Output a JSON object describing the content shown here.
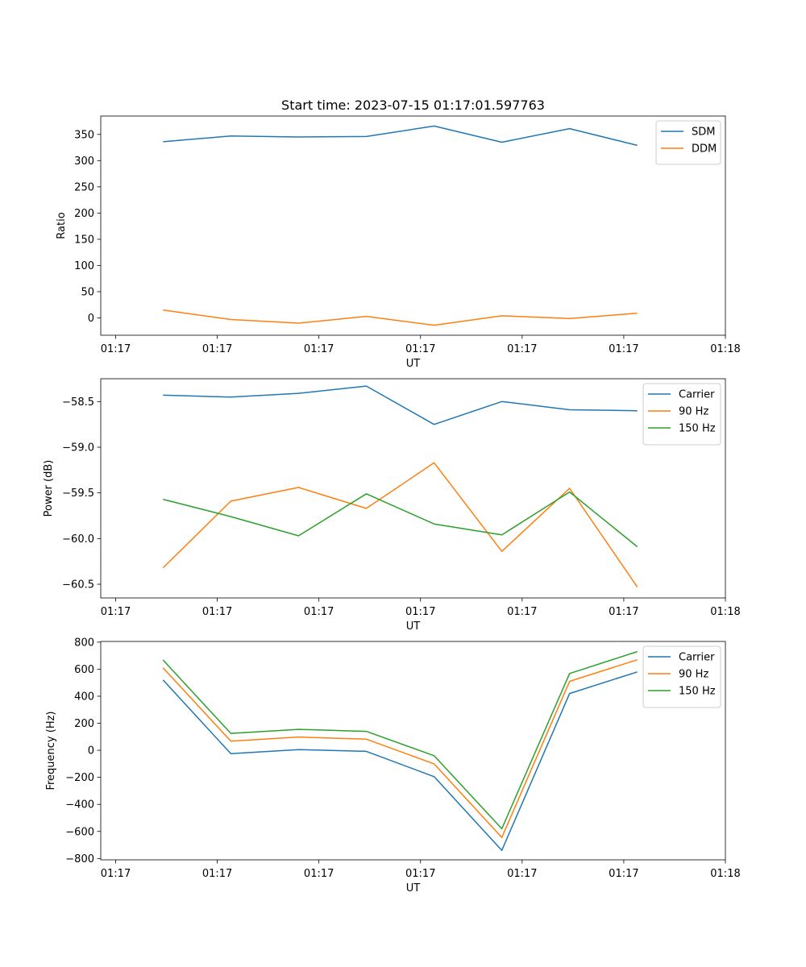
{
  "title": "Start time: 2023-07-15 01:17:01.597763",
  "colors": {
    "blue": "#1f77b4",
    "orange": "#ff7f0e",
    "green": "#2ca02c"
  },
  "chart_data": [
    {
      "type": "line",
      "xlabel": "UT",
      "ylabel": "Ratio",
      "ylim": [
        -33,
        385
      ],
      "yticks": [
        0,
        50,
        100,
        150,
        200,
        250,
        300,
        350
      ],
      "ytick_labels": [
        "0",
        "50",
        "100",
        "150",
        "200",
        "250",
        "300",
        "350"
      ],
      "xlim": [
        -0.22,
        9.0
      ],
      "xticks": [
        0,
        1.5,
        3,
        4.5,
        6,
        7.5,
        9
      ],
      "xtick_labels": [
        "01:17",
        "01:17",
        "01:17",
        "01:17",
        "01:17",
        "01:17",
        "01:18"
      ],
      "x": [
        0.7,
        1.7,
        2.7,
        3.7,
        4.7,
        5.7,
        6.7,
        7.7
      ],
      "legend_position": "top-right",
      "series": [
        {
          "name": "SDM",
          "color": "#1f77b4",
          "values": [
            336,
            347,
            345,
            346,
            366,
            335,
            361,
            329
          ]
        },
        {
          "name": "DDM",
          "color": "#ff7f0e",
          "values": [
            15,
            -3,
            -10,
            3,
            -14,
            4,
            -1,
            9
          ]
        }
      ]
    },
    {
      "type": "line",
      "xlabel": "UT",
      "ylabel": "Power (dB)",
      "ylim": [
        -60.65,
        -58.25
      ],
      "yticks": [
        -60.5,
        -60.0,
        -59.5,
        -59.0,
        -58.5
      ],
      "ytick_labels": [
        "−60.5",
        "−60.0",
        "−59.5",
        "−59.0",
        "−58.5"
      ],
      "xlim": [
        -0.22,
        9.0
      ],
      "xticks": [
        0,
        1.5,
        3,
        4.5,
        6,
        7.5,
        9
      ],
      "xtick_labels": [
        "01:17",
        "01:17",
        "01:17",
        "01:17",
        "01:17",
        "01:17",
        "01:18"
      ],
      "x": [
        0.7,
        1.7,
        2.7,
        3.7,
        4.7,
        5.7,
        6.7,
        7.7
      ],
      "legend_position": "top-right",
      "series": [
        {
          "name": "Carrier",
          "color": "#1f77b4",
          "values": [
            -58.43,
            -58.45,
            -58.41,
            -58.33,
            -58.75,
            -58.5,
            -58.59,
            -58.6
          ]
        },
        {
          "name": "90 Hz",
          "color": "#ff7f0e",
          "values": [
            -60.32,
            -59.59,
            -59.44,
            -59.67,
            -59.17,
            -60.14,
            -59.45,
            -60.53
          ]
        },
        {
          "name": "150 Hz",
          "color": "#2ca02c",
          "values": [
            -59.57,
            -59.76,
            -59.97,
            -59.51,
            -59.84,
            -59.96,
            -59.49,
            -60.09
          ]
        }
      ]
    },
    {
      "type": "line",
      "xlabel": "UT",
      "ylabel": "Frequency (Hz)",
      "ylim": [
        -810,
        805
      ],
      "yticks": [
        -800,
        -600,
        -400,
        -200,
        0,
        200,
        400,
        600,
        800
      ],
      "ytick_labels": [
        "−800",
        "−600",
        "−400",
        "−200",
        "0",
        "200",
        "400",
        "600",
        "800"
      ],
      "xlim": [
        -0.22,
        9.0
      ],
      "xticks": [
        0,
        1.5,
        3,
        4.5,
        6,
        7.5,
        9
      ],
      "xtick_labels": [
        "01:17",
        "01:17",
        "01:17",
        "01:17",
        "01:17",
        "01:17",
        "01:18"
      ],
      "x": [
        0.7,
        1.7,
        2.7,
        3.7,
        4.7,
        5.7,
        6.7,
        7.7
      ],
      "legend_position": "top-right",
      "series": [
        {
          "name": "Carrier",
          "color": "#1f77b4",
          "values": [
            520,
            -25,
            5,
            -8,
            -195,
            -740,
            420,
            580
          ]
        },
        {
          "name": "90 Hz",
          "color": "#ff7f0e",
          "values": [
            610,
            68,
            98,
            82,
            -100,
            -645,
            510,
            670
          ]
        },
        {
          "name": "150 Hz",
          "color": "#2ca02c",
          "values": [
            668,
            125,
            155,
            140,
            -40,
            -580,
            568,
            730
          ]
        }
      ]
    }
  ]
}
